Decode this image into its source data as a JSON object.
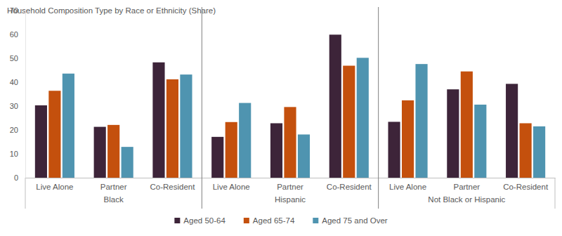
{
  "chart_data": {
    "type": "bar",
    "title": "Household Composition Type by Race or Ethnicity (Share)",
    "categories": [
      "Live Alone",
      "Partner",
      "Co-Resident",
      "Live Alone",
      "Partner",
      "Co-Resident",
      "Live Alone",
      "Partner",
      "Co-Resident"
    ],
    "groups": [
      "Black",
      "Hispanic",
      "Not Black or Hispanic"
    ],
    "series": [
      {
        "name": "Aged 50-64",
        "color": "#3d2439",
        "values": [
          30.3,
          21.3,
          48.3,
          17.1,
          22.8,
          59.9,
          23.4,
          37.0,
          39.3
        ]
      },
      {
        "name": "Aged 65-74",
        "color": "#c4500d",
        "values": [
          36.4,
          22.1,
          41.2,
          23.3,
          29.6,
          46.9,
          32.4,
          44.5,
          22.8
        ]
      },
      {
        "name": "Aged 75 and Over",
        "color": "#4f94b0",
        "values": [
          43.6,
          12.9,
          43.2,
          31.3,
          18.1,
          50.2,
          47.6,
          30.6,
          21.5
        ]
      }
    ],
    "ylim": [
      0,
      70
    ],
    "yticks": [
      0,
      10,
      20,
      30,
      40,
      50,
      60,
      70
    ],
    "grid": false,
    "legend": "bottom"
  }
}
